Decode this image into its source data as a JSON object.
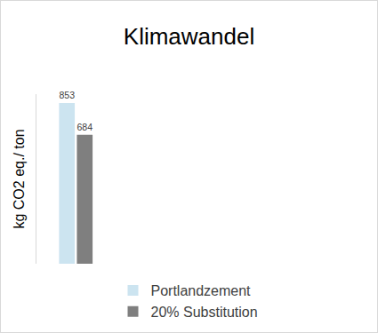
{
  "chart_data": {
    "type": "bar",
    "title": "Klimawandel",
    "y_label": "kg CO2 eq./ ton",
    "categories": [
      null
    ],
    "series": [
      {
        "name": "Portlandzement",
        "color": "#cce4f0",
        "values": [
          853
        ]
      },
      {
        "name": "20% Substitution",
        "color": "#7f7f7f",
        "values": [
          684
        ]
      }
    ],
    "ylim": [
      0,
      900
    ],
    "yticks": [],
    "grid": false,
    "legend": "bottom",
    "data_labels": true,
    "tick_labels": false
  }
}
